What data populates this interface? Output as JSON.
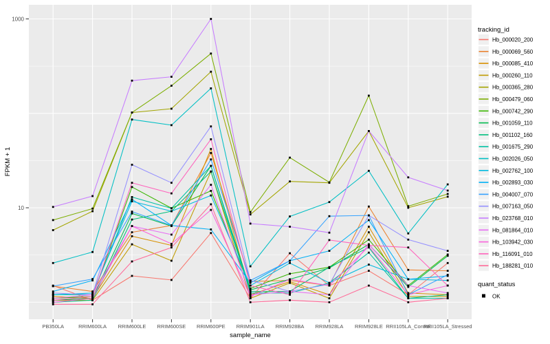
{
  "chart_data": {
    "type": "line",
    "title": "",
    "xlabel": "sample_name",
    "ylabel": "FPKM + 1",
    "yscale": "log10",
    "ylim": [
      0.85,
      1400
    ],
    "y_tick_labels": [
      {
        "value": 1000,
        "label": "1000"
      },
      {
        "value": 10,
        "label": "10"
      }
    ],
    "y_major_gridlines": [
      1,
      10,
      100,
      1000
    ],
    "y_minor_gridlines": [
      3.162,
      31.62,
      316.2
    ],
    "grid": true,
    "legend_position": "right",
    "panel_color": "#EBEBEB",
    "gridline_color": "#FFFFFF",
    "axis_text_color": "#4D4D4D",
    "tick_mark_color": "#333333",
    "point_color": "#000000",
    "legend_key_color": "#F0F0F0",
    "categories": [
      "PB350LA",
      "RRIM600LA",
      "RRIM600LE",
      "RRIM600SE",
      "RRIM600PE",
      "RRIM901LA",
      "RRIM928BA",
      "RRIM928LA",
      "RRIM928LE",
      "RRII105LA_Control",
      "RRII105LA_Stressed"
    ],
    "legend_title": "tracking_id",
    "series": [
      {
        "name": "Hb_000020_200",
        "color": "#F8766D",
        "values": [
          1.5,
          1.05,
          1.9,
          1.72,
          5.4,
          1.1,
          3.3,
          1.5,
          2.15,
          1.2,
          2.6
        ]
      },
      {
        "name": "Hb_000069_560",
        "color": "#EA8331",
        "values": [
          1.48,
          1.3,
          5.5,
          6.5,
          38,
          1.66,
          1.7,
          1.5,
          10.3,
          2.2,
          2.15
        ]
      },
      {
        "name": "Hb_000085_410",
        "color": "#D89000",
        "values": [
          1.15,
          1.1,
          5.0,
          4.0,
          42,
          1.2,
          1.65,
          1.2,
          6.3,
          1.25,
          1.2
        ]
      },
      {
        "name": "Hb_000260_110",
        "color": "#C09B00",
        "values": [
          1.05,
          1.05,
          4.1,
          2.75,
          24.2,
          1.1,
          1.6,
          1.1,
          5.5,
          1.15,
          1.15
        ]
      },
      {
        "name": "Hb_000365_280",
        "color": "#A3A500",
        "values": [
          5.8,
          9.2,
          102,
          112,
          276,
          8.5,
          19,
          18.4,
          65,
          10.0,
          13.1
        ]
      },
      {
        "name": "Hb_000479_060",
        "color": "#7CAE00",
        "values": [
          7.4,
          9.8,
          102,
          196,
          430,
          9.0,
          34,
          18.6,
          154,
          10.4,
          14.0
        ]
      },
      {
        "name": "Hb_000742_290",
        "color": "#39B600",
        "values": [
          1.1,
          1.15,
          16.6,
          9.9,
          15.1,
          1.4,
          2.0,
          2.35,
          4.6,
          1.5,
          3.2
        ]
      },
      {
        "name": "Hb_001059_110",
        "color": "#00BB4E",
        "values": [
          1.05,
          1.1,
          8.7,
          6.4,
          27.8,
          1.35,
          1.75,
          2.3,
          4.1,
          1.45,
          3.1
        ]
      },
      {
        "name": "Hb_001102_160",
        "color": "#00BF7D",
        "values": [
          1.0,
          1.05,
          7.5,
          9.2,
          24.2,
          1.3,
          1.3,
          2.35,
          3.8,
          1.1,
          1.2
        ]
      },
      {
        "name": "Hb_001675_290",
        "color": "#00C1A3",
        "values": [
          1.2,
          1.2,
          13.0,
          9.85,
          27.8,
          1.25,
          1.25,
          1.6,
          3.35,
          1.1,
          1.1
        ]
      },
      {
        "name": "Hb_002026_050",
        "color": "#00BFC4",
        "values": [
          2.6,
          3.4,
          86,
          75,
          184,
          2.4,
          8.1,
          11.5,
          24.6,
          5.35,
          17.7
        ]
      },
      {
        "name": "Hb_002762_100",
        "color": "#00BAE0",
        "values": [
          1.2,
          1.25,
          11.7,
          9.2,
          13.5,
          1.5,
          2.6,
          1.6,
          2.5,
          1.75,
          1.7
        ]
      },
      {
        "name": "Hb_002893_030",
        "color": "#00B0F6",
        "values": [
          1.3,
          1.7,
          12.3,
          6.5,
          5.9,
          1.6,
          2.75,
          3.5,
          7.4,
          1.75,
          1.9
        ]
      },
      {
        "name": "Hb_004007_070",
        "color": "#35A2FF",
        "values": [
          1.48,
          1.76,
          9.1,
          6.5,
          32.5,
          1.7,
          2.75,
          8.15,
          8.3,
          1.2,
          1.95
        ]
      },
      {
        "name": "Hb_007163_050",
        "color": "#9590FF",
        "values": [
          1.25,
          1.2,
          28.6,
          18.4,
          72.8,
          1.7,
          1.3,
          1.55,
          8.3,
          4.6,
          3.5
        ]
      },
      {
        "name": "Hb_023768_010",
        "color": "#C77CFF",
        "values": [
          10.2,
          13.3,
          222,
          244,
          1000,
          6.8,
          6.3,
          5.45,
          65,
          21,
          15.2
        ]
      },
      {
        "name": "Hb_081864_010",
        "color": "#E76BF3",
        "values": [
          1.1,
          1.2,
          6.4,
          5.2,
          17.5,
          1.2,
          1.3,
          1.2,
          4.1,
          1.5,
          1.25
        ]
      },
      {
        "name": "Hb_103942_030",
        "color": "#FA62DB",
        "values": [
          1.0,
          1.1,
          6.4,
          4.15,
          9.5,
          1.15,
          1.75,
          1.5,
          3.9,
          1.2,
          1.5
        ]
      },
      {
        "name": "Hb_116091_010",
        "color": "#FF62BC",
        "values": [
          1.05,
          1.15,
          18.4,
          14.2,
          53.2,
          1.5,
          1.2,
          4.55,
          4.0,
          3.8,
          1.5
        ]
      },
      {
        "name": "Hb_188281_010",
        "color": "#FF6A98",
        "values": [
          0.95,
          0.95,
          2.7,
          3.8,
          10.9,
          1.0,
          1.05,
          1.0,
          1.5,
          1.0,
          1.1
        ]
      }
    ],
    "quant_legend": {
      "title": "quant_status",
      "items": [
        {
          "label": "OK"
        }
      ]
    }
  }
}
